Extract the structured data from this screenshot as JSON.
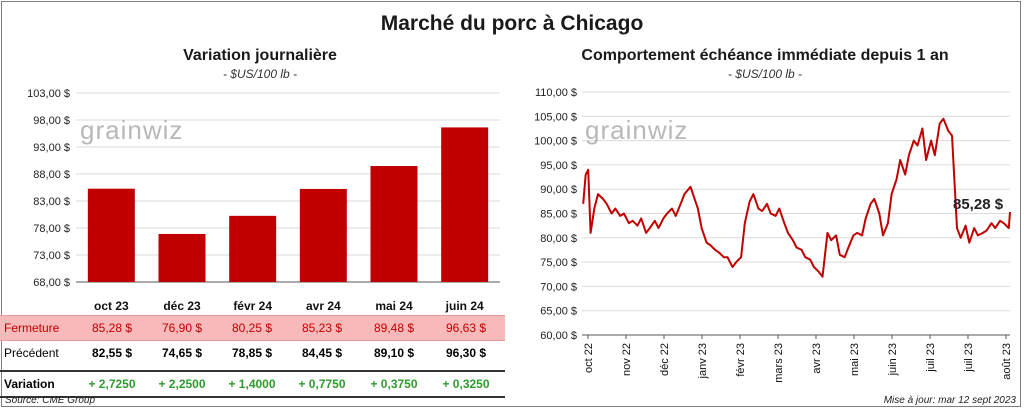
{
  "header": {
    "title": "Marché du porc à Chicago"
  },
  "chart_data": [
    {
      "type": "bar",
      "title": "Variation journalière",
      "subtitle": "- $US/100 lb -",
      "categories": [
        "oct 23",
        "déc 23",
        "févr 24",
        "avr 24",
        "mai 24",
        "juin 24"
      ],
      "values": [
        85.28,
        76.9,
        80.25,
        85.23,
        89.48,
        96.63
      ],
      "ylim": [
        68,
        103
      ],
      "yticks": [
        "68,00 $",
        "73,00 $",
        "78,00 $",
        "83,00 $",
        "88,00 $",
        "93,00 $",
        "98,00 $",
        "103,00 $"
      ],
      "bar_color": "#c00000",
      "grid": true,
      "table": {
        "rows": [
          {
            "label": "Fermeture",
            "values": [
              "85,28  $",
              "76,90  $",
              "80,25  $",
              "85,23  $",
              "89,48  $",
              "96,63  $"
            ]
          },
          {
            "label": "Précédent",
            "values": [
              "82,55  $",
              "74,65  $",
              "78,85  $",
              "84,45  $",
              "89,10  $",
              "96,30  $"
            ]
          },
          {
            "label": "Variation",
            "values": [
              "+ 2,7250",
              "+ 2,2500",
              "+ 1,4000",
              "+ 0,7750",
              "+ 0,3750",
              "+ 0,3250"
            ]
          }
        ]
      }
    },
    {
      "type": "line",
      "title": "Comportement  échéance immédiate depuis 1 an",
      "subtitle": "- $US/100 lb -",
      "ylim": [
        60,
        110
      ],
      "yticks": [
        "60,00 $",
        "65,00 $",
        "70,00 $",
        "75,00 $",
        "80,00 $",
        "85,00 $",
        "90,00 $",
        "95,00 $",
        "100,00 $",
        "105,00 $",
        "110,00 $"
      ],
      "xticks": [
        "oct 22",
        "nov 22",
        "déc 22",
        "janv 23",
        "févr 23",
        "mars 23",
        "avr 23",
        "mai 23",
        "juin 23",
        "juil 23",
        "juil 23",
        "août 23"
      ],
      "x_range": [
        "2022-09-30",
        "2023-09-12"
      ],
      "last_value_label": "85,28 $",
      "line_color": "#c00000",
      "grid": true,
      "series": [
        {
          "x": [
            "2022-10-01",
            "2022-10-03",
            "2022-10-05",
            "2022-10-07",
            "2022-10-10",
            "2022-10-13",
            "2022-10-17",
            "2022-10-20",
            "2022-10-24",
            "2022-10-27",
            "2022-10-31",
            "2022-11-03",
            "2022-11-07",
            "2022-11-10",
            "2022-11-14",
            "2022-11-17",
            "2022-11-21",
            "2022-11-24",
            "2022-11-28",
            "2022-12-01",
            "2022-12-05",
            "2022-12-08",
            "2022-12-12",
            "2022-12-15",
            "2022-12-19",
            "2022-12-22",
            "2022-12-27",
            "2023-01-02",
            "2023-01-05",
            "2023-01-09",
            "2023-01-12",
            "2023-01-16",
            "2023-01-19",
            "2023-01-23",
            "2023-01-26",
            "2023-01-30",
            "2023-02-02",
            "2023-02-06",
            "2023-02-09",
            "2023-02-13",
            "2023-02-16",
            "2023-02-20",
            "2023-02-23",
            "2023-02-27",
            "2023-03-02",
            "2023-03-06",
            "2023-03-09",
            "2023-03-13",
            "2023-03-16",
            "2023-03-20",
            "2023-03-23",
            "2023-03-27",
            "2023-03-30",
            "2023-04-03",
            "2023-04-06",
            "2023-04-10",
            "2023-04-13",
            "2023-04-17",
            "2023-04-20",
            "2023-04-24",
            "2023-04-27",
            "2023-05-01",
            "2023-05-04",
            "2023-05-08",
            "2023-05-11",
            "2023-05-15",
            "2023-05-18",
            "2023-05-22",
            "2023-05-25",
            "2023-05-29",
            "2023-06-01",
            "2023-06-05",
            "2023-06-08",
            "2023-06-12",
            "2023-06-15",
            "2023-06-19",
            "2023-06-22",
            "2023-06-26",
            "2023-06-29",
            "2023-07-03",
            "2023-07-06",
            "2023-07-10",
            "2023-07-13",
            "2023-07-17",
            "2023-07-20",
            "2023-07-24",
            "2023-07-27",
            "2023-07-31",
            "2023-08-03",
            "2023-08-07",
            "2023-08-10",
            "2023-08-14",
            "2023-08-17",
            "2023-08-21",
            "2023-08-24",
            "2023-08-28",
            "2023-08-31",
            "2023-09-04",
            "2023-09-07",
            "2023-09-11",
            "2023-09-12"
          ],
          "y": [
            87.0,
            93.0,
            94.0,
            81.0,
            86.0,
            89.0,
            88.0,
            87.0,
            85.0,
            86.0,
            84.5,
            85.0,
            83.0,
            83.5,
            82.5,
            84.0,
            81.0,
            82.0,
            83.5,
            82.0,
            84.0,
            85.0,
            86.0,
            84.5,
            87.0,
            89.0,
            90.5,
            86.0,
            82.0,
            79.0,
            78.5,
            77.5,
            77.0,
            76.0,
            76.0,
            74.0,
            75.0,
            76.0,
            83.0,
            87.5,
            89.0,
            86.0,
            85.5,
            87.0,
            85.0,
            84.5,
            86.0,
            83.0,
            81.0,
            79.5,
            78.0,
            77.5,
            76.0,
            75.5,
            74.0,
            73.0,
            72.0,
            81.0,
            79.5,
            80.5,
            76.5,
            76.0,
            78.0,
            80.5,
            81.0,
            80.5,
            84.0,
            87.0,
            88.0,
            85.0,
            80.5,
            83.0,
            89.0,
            92.0,
            96.0,
            93.0,
            97.0,
            100.0,
            99.0,
            102.5,
            96.0,
            100.0,
            97.0,
            103.5,
            104.5,
            102.0,
            101.0,
            82.0,
            80.0,
            82.5,
            79.0,
            82.0,
            80.5,
            81.0,
            81.5,
            83.0,
            82.0,
            83.5,
            83.0,
            82.0,
            85.28
          ]
        }
      ]
    }
  ],
  "footer": {
    "source": "Source: CME Group",
    "updated": "Mise à jour: mar 12 sept 2023"
  },
  "watermark": "grainwiz"
}
